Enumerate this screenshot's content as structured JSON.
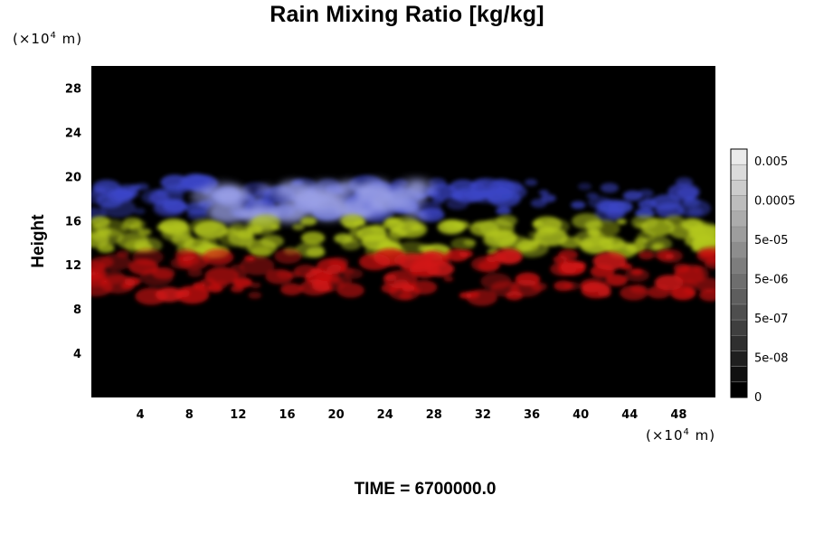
{
  "chart_data": {
    "type": "heatmap",
    "title": "Rain Mixing Ratio [kg/kg]",
    "xlabel": "",
    "ylabel": "Height",
    "x_unit_prefix": "(×10",
    "x_unit_exp": "4",
    "x_unit_suffix": " m)",
    "y_unit_prefix": "(×10",
    "y_unit_exp": "4",
    "y_unit_suffix": " m)",
    "xlim": [
      0,
      51
    ],
    "ylim": [
      0,
      30
    ],
    "x_ticks": [
      4,
      8,
      12,
      16,
      20,
      24,
      28,
      32,
      36,
      40,
      44,
      48
    ],
    "y_ticks": [
      4,
      8,
      12,
      16,
      20,
      24,
      28
    ],
    "background_color": "#000000",
    "colorbar": {
      "labels": [
        "0",
        "5e-08",
        "5e-07",
        "5e-06",
        "5e-05",
        "0.0005",
        "0.005"
      ],
      "n_steps": 16
    },
    "layers": [
      {
        "color": "#3c46c8",
        "x_range": [
          0,
          51
        ],
        "y_range": [
          16.5,
          19.5
        ]
      },
      {
        "color": "#9aa0e6",
        "x_range": [
          9,
          27
        ],
        "y_range": [
          16.3,
          19.2
        ]
      },
      {
        "color": "#b4c81e",
        "x_range": [
          0,
          51
        ],
        "y_range": [
          13,
          16
        ]
      },
      {
        "color": "#d21414",
        "x_range": [
          0,
          51
        ],
        "y_range": [
          9,
          13
        ]
      }
    ]
  },
  "footer": "TIME = 6700000.0"
}
